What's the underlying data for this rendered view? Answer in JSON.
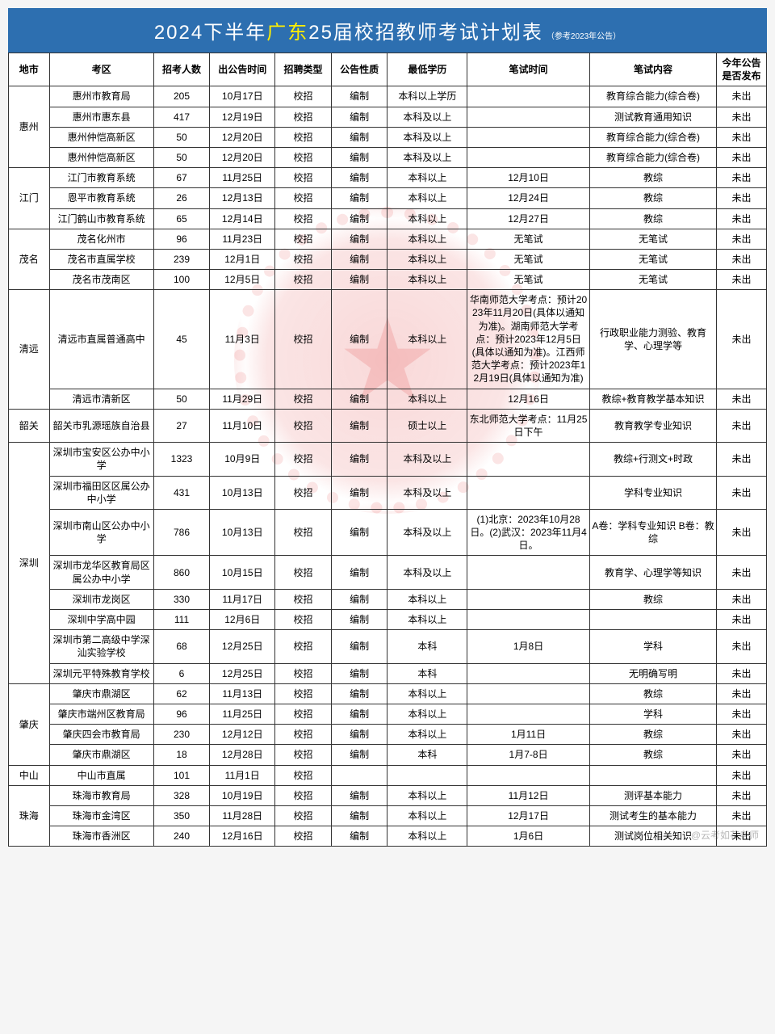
{
  "title_prefix": "2024下半年",
  "title_highlight": "广东",
  "title_suffix": "25届校招教师考试计划表",
  "title_sub": "（参考2023年公告）",
  "attribution": "@云考如花老师",
  "columns": [
    "地市",
    "考区",
    "招考人数",
    "出公告时间",
    "招聘类型",
    "公告性质",
    "最低学历",
    "笔试时间",
    "笔试内容",
    "今年公告是否发布"
  ],
  "col_classes": [
    "col-city",
    "col-zone",
    "col-num",
    "col-date",
    "col-type",
    "col-nat",
    "col-edu",
    "col-exam",
    "col-cont",
    "col-pub"
  ],
  "groups": [
    {
      "city": "惠州",
      "rows": [
        {
          "c": [
            "惠州市教育局",
            "205",
            "10月17日",
            "校招",
            "编制",
            "本科以上学历",
            "",
            "教育综合能力(综合卷)",
            "未出"
          ]
        },
        {
          "c": [
            "惠州市惠东县",
            "417",
            "12月19日",
            "校招",
            "编制",
            "本科及以上",
            "",
            "测试教育通用知识",
            "未出"
          ]
        },
        {
          "c": [
            "惠州仲恺高新区",
            "50",
            "12月20日",
            "校招",
            "编制",
            "本科及以上",
            "",
            "教育综合能力(综合卷)",
            "未出"
          ]
        },
        {
          "c": [
            "惠州仲恺高新区",
            "50",
            "12月20日",
            "校招",
            "编制",
            "本科及以上",
            "",
            "教育综合能力(综合卷)",
            "未出"
          ]
        }
      ]
    },
    {
      "city": "江门",
      "rows": [
        {
          "c": [
            "江门市教育系统",
            "67",
            "11月25日",
            "校招",
            "编制",
            "本科以上",
            "12月10日",
            "教综",
            "未出"
          ]
        },
        {
          "c": [
            "恩平市教育系统",
            "26",
            "12月13日",
            "校招",
            "编制",
            "本科以上",
            "12月24日",
            "教综",
            "未出"
          ]
        },
        {
          "c": [
            "江门鹤山市教育系统",
            "65",
            "12月14日",
            "校招",
            "编制",
            "本科以上",
            "12月27日",
            "教综",
            "未出"
          ]
        }
      ]
    },
    {
      "city": "茂名",
      "rows": [
        {
          "c": [
            "茂名化州市",
            "96",
            "11月23日",
            "校招",
            "编制",
            "本科以上",
            "无笔试",
            "无笔试",
            "未出"
          ]
        },
        {
          "c": [
            "茂名市直属学校",
            "239",
            "12月1日",
            "校招",
            "编制",
            "本科以上",
            "无笔试",
            "无笔试",
            "未出"
          ]
        },
        {
          "c": [
            "茂名市茂南区",
            "100",
            "12月5日",
            "校招",
            "编制",
            "本科以上",
            "无笔试",
            "无笔试",
            "未出"
          ]
        }
      ]
    },
    {
      "city": "清远",
      "rows": [
        {
          "c": [
            "清远市直属普通高中",
            "45",
            "11月3日",
            "校招",
            "编制",
            "本科以上",
            "华南师范大学考点：预计2023年11月20日(具体以通知为准)。湖南师范大学考点：预计2023年12月5日(具体以通知为准)。江西师范大学考点：预计2023年12月19日(具体以通知为准)",
            "行政职业能力测验、教育学、心理学等",
            "未出"
          ]
        },
        {
          "c": [
            "清远市清新区",
            "50",
            "11月29日",
            "校招",
            "编制",
            "本科以上",
            "12月16日",
            "教综+教育教学基本知识",
            "未出"
          ]
        }
      ]
    },
    {
      "city": "韶关",
      "rows": [
        {
          "c": [
            "韶关市乳源瑶族自治县",
            "27",
            "11月10日",
            "校招",
            "编制",
            "硕士以上",
            "东北师范大学考点：11月25日下午",
            "教育教学专业知识",
            "未出"
          ]
        }
      ]
    },
    {
      "city": "深圳",
      "rows": [
        {
          "c": [
            "深圳市宝安区公办中小学",
            "1323",
            "10月9日",
            "校招",
            "编制",
            "本科及以上",
            "",
            "教综+行测文+时政",
            "未出"
          ]
        },
        {
          "c": [
            "深圳市福田区区属公办中小学",
            "431",
            "10月13日",
            "校招",
            "编制",
            "本科及以上",
            "",
            "学科专业知识",
            "未出"
          ]
        },
        {
          "c": [
            "深圳市南山区公办中小学",
            "786",
            "10月13日",
            "校招",
            "编制",
            "本科及以上",
            "(1)北京：2023年10月28日。(2)武汉：2023年11月4日。",
            "A卷：学科专业知识 B卷：教综",
            "未出"
          ]
        },
        {
          "c": [
            "深圳市龙华区教育局区属公办中小学",
            "860",
            "10月15日",
            "校招",
            "编制",
            "本科及以上",
            "",
            "教育学、心理学等知识",
            "未出"
          ]
        },
        {
          "c": [
            "深圳市龙岗区",
            "330",
            "11月17日",
            "校招",
            "编制",
            "本科以上",
            "",
            "教综",
            "未出"
          ]
        },
        {
          "c": [
            "深圳中学高中园",
            "111",
            "12月6日",
            "校招",
            "编制",
            "本科以上",
            "",
            "",
            "未出"
          ]
        },
        {
          "c": [
            "深圳市第二高级中学深汕实验学校",
            "68",
            "12月25日",
            "校招",
            "编制",
            "本科",
            "1月8日",
            "学科",
            "未出"
          ]
        },
        {
          "c": [
            "深圳元平特殊教育学校",
            "6",
            "12月25日",
            "校招",
            "编制",
            "本科",
            "",
            "无明确写明",
            "未出"
          ]
        }
      ]
    },
    {
      "city": "肇庆",
      "rows": [
        {
          "c": [
            "肇庆市鼎湖区",
            "62",
            "11月13日",
            "校招",
            "编制",
            "本科以上",
            "",
            "教综",
            "未出"
          ]
        },
        {
          "c": [
            "肇庆市端州区教育局",
            "96",
            "11月25日",
            "校招",
            "编制",
            "本科以上",
            "",
            "学科",
            "未出"
          ]
        },
        {
          "c": [
            "肇庆四会市教育局",
            "230",
            "12月12日",
            "校招",
            "编制",
            "本科以上",
            "1月11日",
            "教综",
            "未出"
          ]
        },
        {
          "c": [
            "肇庆市鼎湖区",
            "18",
            "12月28日",
            "校招",
            "编制",
            "本科",
            "1月7-8日",
            "教综",
            "未出"
          ]
        }
      ]
    },
    {
      "city": "中山",
      "rows": [
        {
          "c": [
            "中山市直属",
            "101",
            "11月1日",
            "校招",
            "",
            "",
            "",
            "",
            "未出"
          ]
        }
      ]
    },
    {
      "city": "珠海",
      "rows": [
        {
          "c": [
            "珠海市教育局",
            "328",
            "10月19日",
            "校招",
            "编制",
            "本科以上",
            "11月12日",
            "测评基本能力",
            "未出"
          ]
        },
        {
          "c": [
            "珠海市金湾区",
            "350",
            "11月28日",
            "校招",
            "编制",
            "本科以上",
            "12月17日",
            "测试考生的基本能力",
            "未出"
          ]
        },
        {
          "c": [
            "珠海市香洲区",
            "240",
            "12月16日",
            "校招",
            "编制",
            "本科以上",
            "1月6日",
            "测试岗位相关知识",
            "未出"
          ]
        }
      ]
    }
  ],
  "colors": {
    "header_bg": "#2d6fb0",
    "highlight": "#ffee00",
    "border": "#333333",
    "watermark": "rgba(220,40,40,0.15)"
  }
}
